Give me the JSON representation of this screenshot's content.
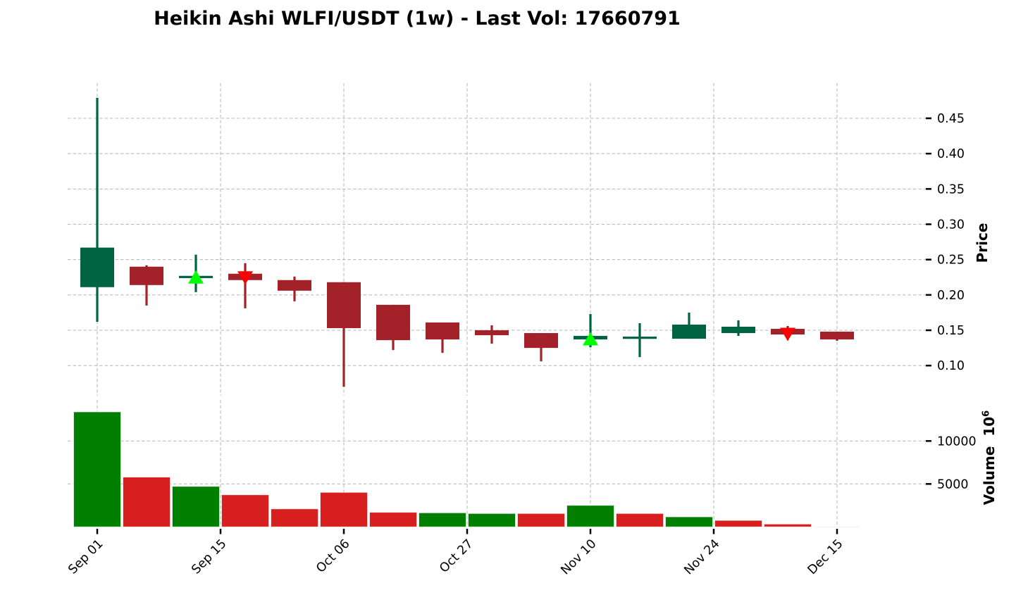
{
  "chart_data": {
    "type": "candlestick",
    "title": "Heikin Ashi WLFI/USDT (1w) - Last Vol: 17660791",
    "subtitle": "",
    "legend_position": null,
    "grid": true,
    "grid_style": "dashed",
    "x_axis": {
      "tick_labels": [
        "Sep 01",
        "Sep 15",
        "Oct 06",
        "Oct 27",
        "Nov 10",
        "Nov 24",
        "Dec 15"
      ],
      "tick_positions_index": [
        0,
        2.5,
        5,
        7.5,
        10,
        12.5,
        15
      ],
      "label_rotation_deg": 45
    },
    "price_axis": {
      "label": "Price",
      "side": "right",
      "ticks": [
        "0.45",
        "0.40",
        "0.35",
        "0.30",
        "0.25",
        "0.20",
        "0.15",
        "0.10"
      ],
      "tick_values": [
        0.45,
        0.4,
        0.35,
        0.3,
        0.25,
        0.2,
        0.15,
        0.1
      ],
      "range": [
        0.057,
        0.5
      ]
    },
    "volume_axis": {
      "label": "Volume",
      "scale_base": "10",
      "scale_exp": "6",
      "side": "right",
      "ticks": [
        "10000",
        "5000"
      ],
      "tick_values": [
        10000,
        5000
      ],
      "range": [
        0,
        14780
      ]
    },
    "candles": [
      {
        "date": "Sep 01",
        "open": 0.211,
        "high": 0.479,
        "low": 0.162,
        "close": 0.267,
        "direction": "up",
        "volume": 13390,
        "volume_direction": "up"
      },
      {
        "date": "Sep 08",
        "open": 0.24,
        "high": 0.242,
        "low": 0.185,
        "close": 0.214,
        "direction": "down",
        "volume": 5800,
        "volume_direction": "down"
      },
      {
        "date": "Sep 15",
        "open": 0.224,
        "high": 0.257,
        "low": 0.204,
        "close": 0.227,
        "direction": "up",
        "volume": 4720,
        "volume_direction": "up"
      },
      {
        "date": "Sep 22",
        "open": 0.23,
        "high": 0.245,
        "low": 0.181,
        "close": 0.221,
        "direction": "down",
        "volume": 3740,
        "volume_direction": "down"
      },
      {
        "date": "Sep 29",
        "open": 0.221,
        "high": 0.226,
        "low": 0.191,
        "close": 0.206,
        "direction": "down",
        "volume": 2100,
        "volume_direction": "down"
      },
      {
        "date": "Oct 06",
        "open": 0.218,
        "high": 0.218,
        "low": 0.07,
        "close": 0.153,
        "direction": "down",
        "volume": 4020,
        "volume_direction": "down"
      },
      {
        "date": "Oct 13",
        "open": 0.186,
        "high": 0.186,
        "low": 0.122,
        "close": 0.136,
        "direction": "down",
        "volume": 1700,
        "volume_direction": "down"
      },
      {
        "date": "Oct 20",
        "open": 0.161,
        "high": 0.161,
        "low": 0.118,
        "close": 0.137,
        "direction": "down",
        "volume": 1640,
        "volume_direction": "up"
      },
      {
        "date": "Oct 27",
        "open": 0.15,
        "high": 0.157,
        "low": 0.131,
        "close": 0.143,
        "direction": "down",
        "volume": 1560,
        "volume_direction": "up"
      },
      {
        "date": "Nov 03",
        "open": 0.146,
        "high": 0.146,
        "low": 0.106,
        "close": 0.125,
        "direction": "down",
        "volume": 1560,
        "volume_direction": "down"
      },
      {
        "date": "Nov 10",
        "open": 0.137,
        "high": 0.173,
        "low": 0.126,
        "close": 0.142,
        "direction": "up",
        "volume": 2510,
        "volume_direction": "up"
      },
      {
        "date": "Nov 17",
        "open": 0.138,
        "high": 0.16,
        "low": 0.112,
        "close": 0.141,
        "direction": "up",
        "volume": 1560,
        "volume_direction": "down"
      },
      {
        "date": "Nov 24",
        "open": 0.138,
        "high": 0.175,
        "low": 0.138,
        "close": 0.158,
        "direction": "up",
        "volume": 1170,
        "volume_direction": "up"
      },
      {
        "date": "Dec 01",
        "open": 0.146,
        "high": 0.164,
        "low": 0.142,
        "close": 0.155,
        "direction": "up",
        "volume": 760,
        "volume_direction": "down"
      },
      {
        "date": "Dec 08",
        "open": 0.152,
        "high": 0.156,
        "low": 0.142,
        "close": 0.144,
        "direction": "down",
        "volume": 330,
        "volume_direction": "down"
      },
      {
        "date": "Dec 15",
        "open": 0.148,
        "high": 0.148,
        "low": 0.135,
        "close": 0.137,
        "direction": "down",
        "volume": 17.66,
        "volume_direction": "down"
      }
    ],
    "markers": [
      {
        "candle_index": 2,
        "shape": "triangle-up",
        "price": 0.2255,
        "color_key": "marker_up"
      },
      {
        "candle_index": 3,
        "shape": "triangle-down",
        "price": 0.224,
        "color_key": "marker_down"
      },
      {
        "candle_index": 10,
        "shape": "triangle-up",
        "price": 0.138,
        "color_key": "marker_up"
      },
      {
        "candle_index": 14,
        "shape": "triangle-down",
        "price": 0.144,
        "color_key": "marker_down"
      }
    ],
    "colors": {
      "up": "#006341",
      "down": "#a32128",
      "volume_up": "#007f00",
      "volume_down": "#d71f1f",
      "marker_up": "#00ff00",
      "marker_down": "#ff0000",
      "grid": "#b5b5b5",
      "text": "#000000",
      "background": "#ffffff"
    }
  }
}
